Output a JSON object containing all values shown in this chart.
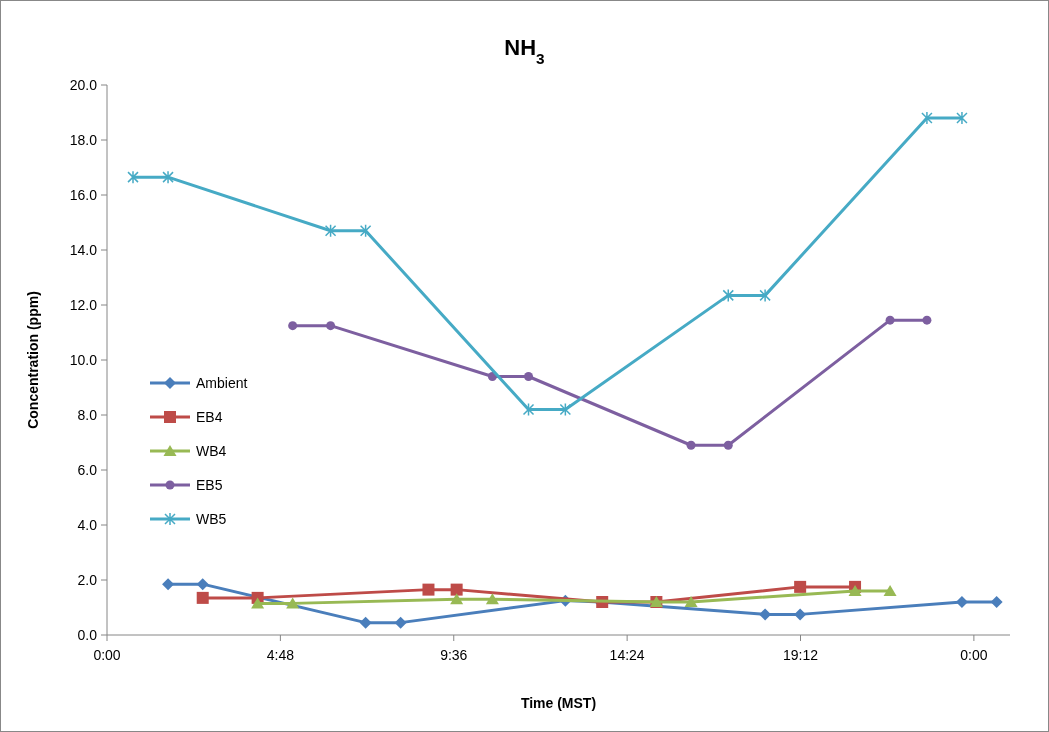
{
  "chart_data": {
    "type": "line",
    "title": "NH$_{3}$",
    "xlabel": "Time (MST)",
    "ylabel": "Concentration (ppm)",
    "xlim": [
      0,
      25
    ],
    "xticks": [
      {
        "value": 0,
        "label": "0:00"
      },
      {
        "value": 4.8,
        "label": "4:48"
      },
      {
        "value": 9.6,
        "label": "9:36"
      },
      {
        "value": 14.4,
        "label": "14:24"
      },
      {
        "value": 19.2,
        "label": "19:12"
      },
      {
        "value": 24,
        "label": "0:00"
      }
    ],
    "ylim": [
      0,
      20
    ],
    "yticks": [
      {
        "value": 0,
        "label": "0.0"
      },
      {
        "value": 2,
        "label": "2.0"
      },
      {
        "value": 4,
        "label": "4.0"
      },
      {
        "value": 6,
        "label": "6.0"
      },
      {
        "value": 8,
        "label": "8.0"
      },
      {
        "value": 10,
        "label": "10.0"
      },
      {
        "value": 12,
        "label": "12.0"
      },
      {
        "value": 14,
        "label": "14.0"
      },
      {
        "value": 16,
        "label": "16.0"
      },
      {
        "value": 18,
        "label": "18.0"
      },
      {
        "value": 20,
        "label": "20.0"
      }
    ],
    "grid": false,
    "legend": "left",
    "line_style": "solid",
    "series": [
      {
        "name": "Ambient",
        "color": "#4a7ebb",
        "marker": "diamond",
        "x": [
          1.69,
          2.65,
          7.16,
          8.13,
          12.69,
          13.66,
          18.22,
          19.19,
          23.67,
          24.63
        ],
        "values": [
          1.85,
          1.85,
          0.45,
          0.45,
          1.25,
          1.2,
          0.75,
          0.75,
          1.2,
          1.2
        ]
      },
      {
        "name": "EB4",
        "color": "#be4b48",
        "marker": "square",
        "x": [
          2.65,
          4.17,
          8.9,
          9.68,
          13.71,
          15.21,
          19.19,
          20.71
        ],
        "values": [
          1.35,
          1.35,
          1.65,
          1.65,
          1.2,
          1.2,
          1.75,
          1.75
        ]
      },
      {
        "name": "WB4",
        "color": "#98b954",
        "marker": "triangle",
        "x": [
          4.17,
          5.14,
          9.68,
          10.67,
          15.21,
          16.17,
          20.71,
          21.68
        ],
        "values": [
          1.15,
          1.15,
          1.3,
          1.3,
          1.2,
          1.2,
          1.6,
          1.6
        ]
      },
      {
        "name": "EB5",
        "color": "#7d5fa0",
        "marker": "circle",
        "x": [
          5.14,
          6.19,
          10.67,
          11.67,
          16.17,
          17.2,
          21.68,
          22.7
        ],
        "values": [
          11.25,
          11.25,
          9.4,
          9.4,
          6.9,
          6.9,
          11.45,
          11.45
        ]
      },
      {
        "name": "WB5",
        "color": "#46aac5",
        "marker": "cross",
        "x": [
          0.72,
          1.69,
          6.19,
          7.16,
          11.67,
          12.69,
          17.2,
          18.22,
          22.7,
          23.67
        ],
        "values": [
          16.65,
          16.65,
          14.7,
          14.7,
          8.2,
          8.2,
          12.35,
          12.35,
          18.8,
          18.8
        ]
      }
    ]
  }
}
